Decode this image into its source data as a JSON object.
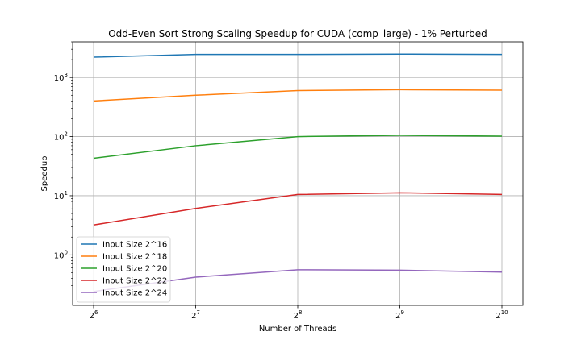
{
  "chart_data": {
    "type": "line",
    "title": "Odd-Even Sort Strong Scaling Speedup for CUDA (comp_large) - 1% Perturbed",
    "xlabel": "Number of Threads",
    "ylabel": "Speedup",
    "x": [
      64,
      128,
      256,
      512,
      1024
    ],
    "x_tick_labels": [
      {
        "base": "2",
        "exp": "6"
      },
      {
        "base": "2",
        "exp": "7"
      },
      {
        "base": "2",
        "exp": "8"
      },
      {
        "base": "2",
        "exp": "9"
      },
      {
        "base": "2",
        "exp": "10"
      }
    ],
    "y_scale": "log",
    "y_tick_labels": [
      {
        "base": "10",
        "exp": "0",
        "value": 1
      },
      {
        "base": "10",
        "exp": "1",
        "value": 10
      },
      {
        "base": "10",
        "exp": "2",
        "value": 100
      },
      {
        "base": "10",
        "exp": "3",
        "value": 1000
      }
    ],
    "ylim": [
      0.14,
      4000
    ],
    "grid": true,
    "legend_position": "bottom-left",
    "series": [
      {
        "name": "Input Size 2^16",
        "color": "#1f77b4",
        "values": [
          2200,
          2450,
          2450,
          2480,
          2450
        ]
      },
      {
        "name": "Input Size 2^18",
        "color": "#ff7f0e",
        "values": [
          400,
          500,
          600,
          620,
          610
        ]
      },
      {
        "name": "Input Size 2^20",
        "color": "#2ca02c",
        "values": [
          43,
          70,
          100,
          105,
          102
        ]
      },
      {
        "name": "Input Size 2^22",
        "color": "#d62728",
        "values": [
          3.2,
          6.1,
          10.5,
          11.2,
          10.5
        ]
      },
      {
        "name": "Input Size 2^24",
        "color": "#9467bd",
        "values": [
          0.24,
          0.42,
          0.56,
          0.55,
          0.51
        ]
      }
    ]
  }
}
